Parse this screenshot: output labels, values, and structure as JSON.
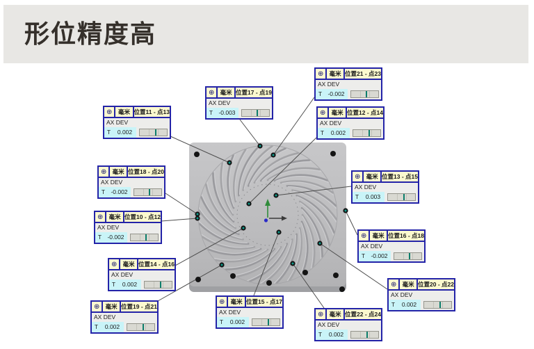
{
  "header": {
    "title": "形位精度高"
  },
  "colors": {
    "band_bg": "#e8e7e4",
    "title_text": "#35302b",
    "callout_border": "#2323a8",
    "callout_header_bg": "#fcf9cf",
    "value_cell_bg": "#c9f4f8",
    "deviation_tick": "#0b7e6b",
    "plate_gray": "#bcbcbe",
    "point_teal": "#0c9c8c"
  },
  "callouts": [
    {
      "symbol": "⊕",
      "unit": "毫米",
      "title": "位置17 - 点19",
      "axis_label": "AX DEV",
      "t_label": "T",
      "value": "-0.003"
    },
    {
      "symbol": "⊕",
      "unit": "毫米",
      "title": "位置21 - 点23",
      "axis_label": "AX DEV",
      "t_label": "T",
      "value": "-0.002"
    },
    {
      "symbol": "⊕",
      "unit": "毫米",
      "title": "位置11 - 点13",
      "axis_label": "AX DEV",
      "t_label": "T",
      "value": "0.002"
    },
    {
      "symbol": "⊕",
      "unit": "毫米",
      "title": "位置12 - 点14",
      "axis_label": "AX DEV",
      "t_label": "T",
      "value": "0.002"
    },
    {
      "symbol": "⊕",
      "unit": "毫米",
      "title": "位置18 - 点20",
      "axis_label": "AX DEV",
      "t_label": "T",
      "value": "-0.002"
    },
    {
      "symbol": "⊕",
      "unit": "毫米",
      "title": "位置13 - 点15",
      "axis_label": "AX DEV",
      "t_label": "T",
      "value": "0.003"
    },
    {
      "symbol": "⊕",
      "unit": "毫米",
      "title": "位置10 - 点12",
      "axis_label": "AX DEV",
      "t_label": "T",
      "value": "-0.002"
    },
    {
      "symbol": "⊕",
      "unit": "毫米",
      "title": "位置16 - 点18",
      "axis_label": "AX DEV",
      "t_label": "T",
      "value": "-0.002"
    },
    {
      "symbol": "⊕",
      "unit": "毫米",
      "title": "位置14 - 点16",
      "axis_label": "AX DEV",
      "t_label": "T",
      "value": "0.002"
    },
    {
      "symbol": "⊕",
      "unit": "毫米",
      "title": "位置20 - 点22",
      "axis_label": "AX DEV",
      "t_label": "T",
      "value": "0.002"
    },
    {
      "symbol": "⊕",
      "unit": "毫米",
      "title": "位置19 - 点21",
      "axis_label": "AX DEV",
      "t_label": "T",
      "value": "0.002"
    },
    {
      "symbol": "⊕",
      "unit": "毫米",
      "title": "位置15 - 点17",
      "axis_label": "AX DEV",
      "t_label": "T",
      "value": "0.002"
    },
    {
      "symbol": "⊕",
      "unit": "毫米",
      "title": "位置22 - 点24",
      "axis_label": "AX DEV",
      "t_label": "T",
      "value": "0.002"
    }
  ]
}
